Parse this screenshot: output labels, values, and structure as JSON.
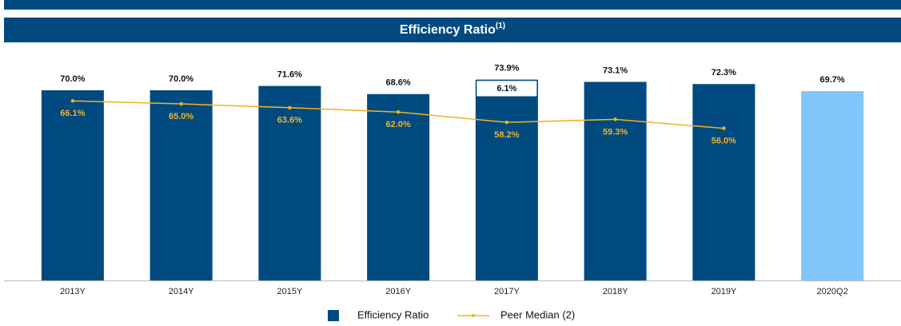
{
  "chart_data": {
    "type": "bar",
    "title": "Efficiency Ratio",
    "title_superscript": "(1)",
    "categories": [
      "2013Y",
      "2014Y",
      "2015Y",
      "2016Y",
      "2017Y",
      "2018Y",
      "2019Y",
      "2020Q2"
    ],
    "series": [
      {
        "name": "Efficiency Ratio",
        "type": "bar",
        "color": "#004a80",
        "highlight_color": "#80c6fb",
        "highlight_index": 7,
        "values": [
          70.0,
          70.0,
          71.6,
          68.6,
          73.9,
          73.1,
          72.3,
          69.7
        ],
        "value_labels": [
          "70.0%",
          "70.0%",
          "71.6%",
          "68.6%",
          "73.9%",
          "73.1%",
          "72.3%",
          "69.7%"
        ],
        "inset_values": [
          null,
          null,
          null,
          null,
          6.1,
          null,
          null,
          null
        ],
        "inset_labels": [
          null,
          null,
          null,
          null,
          "6.1%",
          null,
          null,
          null
        ]
      },
      {
        "name": "Peer Median (2)",
        "type": "line",
        "color": "#f0b323",
        "values": [
          66.1,
          65.0,
          63.6,
          62.0,
          58.2,
          59.3,
          56.0,
          null
        ],
        "value_labels": [
          "66.1%",
          "65.0%",
          "63.6%",
          "62.0%",
          "58.2%",
          "59.3%",
          "56.0%",
          null
        ]
      }
    ],
    "ylim": [
      0,
      80
    ],
    "grid": false,
    "legend": "bottom"
  }
}
